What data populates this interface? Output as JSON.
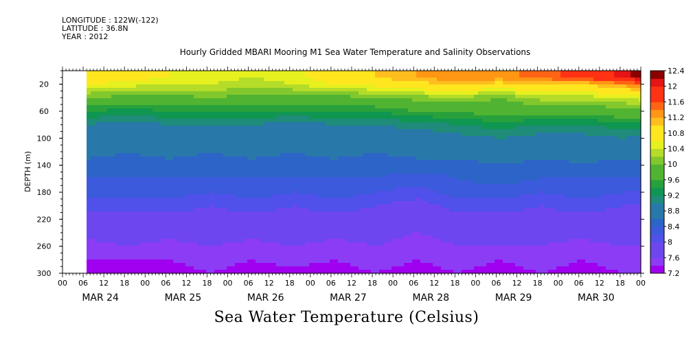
{
  "header": {
    "longitude": "LONGITUDE : 122W(-122)",
    "latitude": "LATITUDE : 36.8N",
    "year": "YEAR : 2012",
    "plot_title": "Hourly Gridded MBARI Mooring M1 Sea Water Temperature and Salinity Observations"
  },
  "footer": {
    "variable_title": "Sea Water Temperature (Celsius)"
  },
  "colors": {
    "levels": [
      "#a000f0",
      "#8c3cf5",
      "#6e46f0",
      "#5050eb",
      "#3c5adc",
      "#2d64c8",
      "#2878aa",
      "#1e8c78",
      "#0f9650",
      "#28a03c",
      "#50b432",
      "#82c82d",
      "#b4dc28",
      "#e6f01e",
      "#ffe61e",
      "#ffbe1e",
      "#ff9614",
      "#ff6414",
      "#ff3214",
      "#e61414",
      "#8c0000"
    ]
  },
  "chart_data": {
    "type": "heatmap",
    "title": "Hourly Gridded MBARI Mooring M1 Sea Water Temperature and Salinity Observations",
    "xlabel": "",
    "ylabel": "DEPTH (m)",
    "x_day_labels": [
      "MAR 24",
      "MAR 25",
      "MAR 26",
      "MAR 27",
      "MAR 28",
      "MAR 29",
      "MAR 30"
    ],
    "x_hour_labels": [
      "00",
      "06",
      "12",
      "18"
    ],
    "x_range": [
      "2012-03-24T00:00",
      "2012-03-31T00:00"
    ],
    "data_start": "2012-03-24T07:00",
    "y_ticks": [
      20,
      60,
      100,
      140,
      180,
      220,
      260,
      300
    ],
    "y_range": [
      0,
      300
    ],
    "y_inverted": true,
    "colorbar_ticks": [
      7.2,
      7.6,
      8,
      8.4,
      8.8,
      9.2,
      9.6,
      10,
      10.4,
      10.8,
      11.2,
      11.6,
      12,
      12.4
    ],
    "color_range": [
      7.2,
      12.4
    ],
    "color_step": 0.2,
    "depths": [
      10,
      20,
      40,
      60,
      80,
      100,
      120,
      140,
      160,
      180,
      200,
      220,
      240,
      260,
      280,
      300
    ],
    "times": [
      "2012-03-24T07:00",
      "2012-03-24T19:00",
      "2012-03-25T07:00",
      "2012-03-25T19:00",
      "2012-03-26T07:00",
      "2012-03-26T19:00",
      "2012-03-27T07:00",
      "2012-03-27T19:00",
      "2012-03-28T07:00",
      "2012-03-28T19:00",
      "2012-03-29T07:00",
      "2012-03-29T19:00",
      "2012-03-30T07:00",
      "2012-03-30T19:00",
      "2012-03-31T00:00"
    ],
    "values": [
      [
        10.9,
        10.7,
        10.6,
        10.5,
        10.4,
        10.5,
        10.8,
        11.0,
        11.2,
        11.4,
        11.3,
        11.5,
        11.7,
        12.1,
        12.3
      ],
      [
        10.6,
        10.5,
        10.4,
        10.4,
        10.3,
        10.4,
        10.6,
        10.7,
        10.9,
        11.0,
        10.9,
        11.0,
        11.0,
        11.3,
        11.5
      ],
      [
        10.0,
        9.9,
        9.9,
        10.0,
        9.9,
        9.9,
        9.9,
        10.0,
        10.1,
        10.2,
        10.0,
        10.3,
        10.3,
        10.4,
        10.5
      ],
      [
        9.4,
        9.3,
        9.4,
        9.4,
        9.4,
        9.4,
        9.4,
        9.4,
        9.6,
        9.6,
        9.8,
        9.7,
        9.7,
        9.9,
        9.9
      ],
      [
        9.0,
        8.9,
        9.0,
        9.0,
        9.0,
        8.9,
        9.0,
        9.0,
        9.1,
        9.2,
        9.3,
        9.2,
        9.2,
        9.3,
        9.3
      ],
      [
        8.8,
        8.8,
        8.8,
        8.8,
        8.8,
        8.8,
        8.8,
        8.8,
        8.8,
        8.9,
        9.0,
        8.9,
        8.9,
        9.0,
        8.9
      ],
      [
        8.7,
        8.6,
        8.7,
        8.6,
        8.7,
        8.6,
        8.7,
        8.6,
        8.7,
        8.7,
        8.8,
        8.7,
        8.7,
        8.7,
        8.7
      ],
      [
        8.5,
        8.5,
        8.5,
        8.5,
        8.5,
        8.5,
        8.5,
        8.5,
        8.5,
        8.5,
        8.6,
        8.5,
        8.6,
        8.5,
        8.5
      ],
      [
        8.4,
        8.4,
        8.4,
        8.4,
        8.4,
        8.4,
        8.4,
        8.4,
        8.3,
        8.4,
        8.5,
        8.4,
        8.4,
        8.4,
        8.4
      ],
      [
        8.3,
        8.3,
        8.3,
        8.2,
        8.3,
        8.2,
        8.3,
        8.2,
        8.1,
        8.3,
        8.3,
        8.2,
        8.3,
        8.2,
        8.2
      ],
      [
        8.1,
        8.1,
        8.1,
        8.0,
        8.1,
        8.0,
        8.1,
        8.0,
        7.9,
        8.1,
        8.1,
        8.0,
        8.1,
        8.0,
        8.0
      ],
      [
        7.9,
        7.9,
        7.9,
        7.9,
        7.9,
        7.9,
        7.9,
        7.9,
        7.8,
        7.9,
        7.9,
        7.9,
        7.9,
        7.9,
        7.9
      ],
      [
        7.7,
        7.8,
        7.7,
        7.8,
        7.7,
        7.8,
        7.7,
        7.7,
        7.6,
        7.7,
        7.8,
        7.7,
        7.7,
        7.8,
        7.8
      ],
      [
        7.5,
        7.6,
        7.5,
        7.6,
        7.5,
        7.6,
        7.5,
        7.6,
        7.5,
        7.6,
        7.6,
        7.6,
        7.5,
        7.6,
        7.6
      ],
      [
        7.4,
        7.4,
        7.4,
        7.5,
        7.4,
        7.5,
        7.4,
        7.5,
        7.4,
        7.5,
        7.4,
        7.5,
        7.4,
        7.5,
        7.5
      ],
      [
        7.3,
        7.3,
        7.3,
        7.4,
        7.3,
        7.3,
        7.3,
        7.4,
        7.3,
        7.4,
        7.3,
        7.4,
        7.3,
        7.4,
        7.4
      ]
    ]
  }
}
